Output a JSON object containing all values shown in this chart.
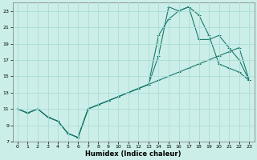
{
  "xlabel": "Humidex (Indice chaleur)",
  "bg_color": "#cceee8",
  "grid_color": "#aaddd8",
  "line_color": "#1a7a6e",
  "xlim": [
    -0.5,
    23.5
  ],
  "ylim": [
    7,
    24
  ],
  "xticks": [
    0,
    1,
    2,
    3,
    4,
    5,
    6,
    7,
    8,
    9,
    10,
    11,
    12,
    13,
    14,
    15,
    16,
    17,
    18,
    19,
    20,
    21,
    22,
    23
  ],
  "yticks": [
    7,
    9,
    11,
    13,
    15,
    17,
    19,
    21,
    23
  ],
  "line1_x": [
    0,
    1,
    2,
    3,
    4,
    5,
    6,
    7,
    8,
    9,
    10,
    11,
    12,
    13,
    14,
    15,
    16,
    17,
    18,
    19,
    20,
    21,
    22,
    23
  ],
  "line1_y": [
    11,
    10.5,
    11,
    10,
    9.5,
    8,
    7.5,
    11,
    11.5,
    12,
    12.5,
    13,
    13.5,
    14,
    14.5,
    15,
    15.5,
    16,
    16.5,
    17,
    17.5,
    18,
    18.5,
    14.5
  ],
  "line2_x": [
    0,
    1,
    2,
    3,
    4,
    5,
    6,
    7,
    8,
    9,
    10,
    11,
    12,
    13,
    14,
    15,
    16,
    17,
    18,
    19,
    20,
    21,
    22,
    23
  ],
  "line2_y": [
    11,
    10.5,
    11,
    10,
    9.5,
    8,
    7.5,
    11,
    11.5,
    12,
    12.5,
    13,
    13.5,
    14,
    17.5,
    23.5,
    23,
    23.5,
    22.5,
    20,
    16.5,
    16,
    15.5,
    14.5
  ],
  "line3_x": [
    0,
    1,
    2,
    3,
    4,
    5,
    6,
    7,
    8,
    9,
    10,
    11,
    12,
    13,
    14,
    15,
    16,
    17,
    18,
    19,
    20,
    21,
    22,
    23
  ],
  "line3_y": [
    11,
    10.5,
    11,
    10,
    9.5,
    8,
    7.5,
    11,
    11.5,
    12,
    12.5,
    13,
    13.5,
    14,
    20,
    22,
    23,
    23.5,
    19.5,
    19.5,
    20,
    18.5,
    17,
    14.5
  ]
}
